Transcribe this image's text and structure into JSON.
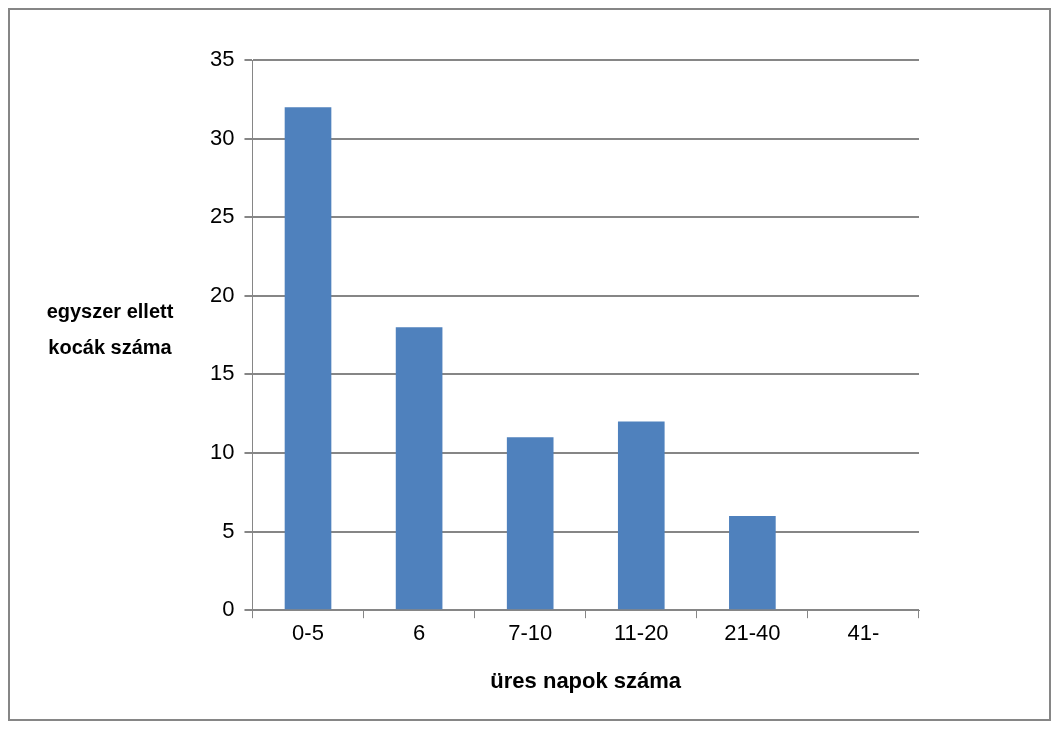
{
  "chart_data": {
    "type": "bar",
    "xlabel": "üres napok száma",
    "ylabel": "egyszer ellett kocák száma",
    "categories": [
      "0-5",
      "6",
      "7-10",
      "11-20",
      "21-40",
      "41-"
    ],
    "values": [
      32,
      18,
      11,
      12,
      6,
      0
    ],
    "color": "#4f81bd",
    "ylim": [
      0,
      35
    ],
    "yticks": [
      0,
      5,
      10,
      15,
      20,
      25,
      30,
      35
    ],
    "grid": "y",
    "legend": false
  }
}
